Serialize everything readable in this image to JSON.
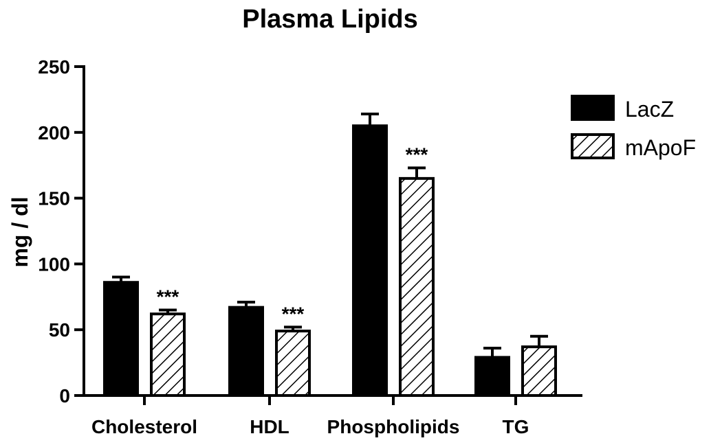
{
  "chart_data": {
    "type": "bar",
    "title": "Plasma Lipids",
    "xlabel": "",
    "ylabel": "mg / dl",
    "ylim": [
      0,
      250
    ],
    "yticks": [
      "0",
      "50",
      "100",
      "150",
      "200",
      "250"
    ],
    "categories": [
      "Cholesterol",
      "HDL",
      "Phospholipids",
      "TG"
    ],
    "series": [
      {
        "name": "LacZ",
        "fill": "solid",
        "color": "#000000",
        "values": [
          86,
          67,
          205,
          29
        ],
        "errors": [
          4,
          4,
          9,
          7
        ]
      },
      {
        "name": "mApoF",
        "fill": "hatched",
        "color": "#000000",
        "values": [
          62,
          49,
          165,
          37
        ],
        "errors": [
          3,
          3,
          8,
          8
        ]
      }
    ],
    "annotations": [
      "***",
      "***",
      "***",
      ""
    ],
    "legend_position": "top-right",
    "grid": false
  }
}
